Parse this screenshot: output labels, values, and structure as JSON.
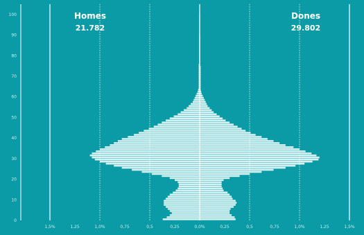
{
  "chart_data": {
    "type": "bar",
    "orientation": "horizontal-population-pyramid",
    "colors": {
      "background": "#0a9ba6",
      "bars": "#d6f2f2",
      "grid": "#ffffff"
    },
    "grid": true,
    "series": [
      {
        "name": "Homes",
        "total": "21.782",
        "side": "left"
      },
      {
        "name": "Dones",
        "total": "29.802",
        "side": "right"
      }
    ],
    "xlim": [
      -1.5,
      1.5
    ],
    "ylim": [
      0,
      105
    ],
    "x_tick_values": [
      -1.5,
      -1.25,
      -1.0,
      -0.75,
      -0.5,
      -0.25,
      0,
      0.25,
      0.5,
      0.75,
      1.0,
      1.25,
      1.5
    ],
    "x_tick_labels": [
      "1,5%",
      "1,25",
      "1,0%",
      "0,75",
      "0,5",
      "0,25",
      "0,0%",
      "0,25",
      "0,5",
      "0,75",
      "1,0%",
      "1,25",
      "1,5%"
    ],
    "y_tick_values": [
      0,
      10,
      20,
      30,
      40,
      50,
      60,
      70,
      80,
      90,
      100
    ],
    "y_tick_labels": [
      "0",
      "10",
      "20",
      "30",
      "40",
      "50",
      "60",
      "70",
      "80",
      "90",
      "100"
    ],
    "ages": [
      0,
      1,
      2,
      3,
      4,
      5,
      6,
      7,
      8,
      9,
      10,
      11,
      12,
      13,
      14,
      15,
      16,
      17,
      18,
      19,
      20,
      21,
      22,
      23,
      24,
      25,
      26,
      27,
      28,
      29,
      30,
      31,
      32,
      33,
      34,
      35,
      36,
      37,
      38,
      39,
      40,
      41,
      42,
      43,
      44,
      45,
      46,
      47,
      48,
      49,
      50,
      51,
      52,
      53,
      54,
      55,
      56,
      57,
      58,
      59,
      60,
      61,
      62,
      63,
      64,
      65,
      66,
      67,
      68,
      69,
      70,
      71,
      72,
      73,
      74,
      75,
      76,
      77,
      78,
      79,
      80,
      81,
      82,
      83,
      84,
      85,
      86,
      87,
      88,
      89,
      90,
      91,
      92,
      93,
      94,
      95,
      96,
      97,
      98,
      99,
      100
    ],
    "men": [
      0.37,
      0.33,
      0.3,
      0.28,
      0.3,
      0.32,
      0.34,
      0.36,
      0.36,
      0.36,
      0.34,
      0.32,
      0.3,
      0.27,
      0.24,
      0.22,
      0.21,
      0.21,
      0.22,
      0.25,
      0.3,
      0.38,
      0.48,
      0.58,
      0.68,
      0.78,
      0.86,
      0.94,
      1.0,
      1.05,
      1.08,
      1.1,
      1.08,
      1.04,
      1.0,
      0.95,
      0.9,
      0.86,
      0.82,
      0.78,
      0.72,
      0.66,
      0.61,
      0.56,
      0.51,
      0.46,
      0.42,
      0.38,
      0.34,
      0.3,
      0.26,
      0.22,
      0.19,
      0.16,
      0.13,
      0.11,
      0.09,
      0.07,
      0.06,
      0.05,
      0.04,
      0.03,
      0.02,
      0.015,
      0.01,
      0.01,
      0.01,
      0.01,
      0.01,
      0.01,
      0.01,
      0.01,
      0.01,
      0.01,
      0.01,
      0.01,
      0.005,
      0.005,
      0.005,
      0.005,
      0.005,
      0.005,
      0.005,
      0.005,
      0.005,
      0.005,
      0.005,
      0.005,
      0.005,
      0.005,
      0.005,
      0.003,
      0.003,
      0.003,
      0.003,
      0.003,
      0.003,
      0.003,
      0.003,
      0.003,
      0.003
    ],
    "women": [
      0.36,
      0.35,
      0.32,
      0.3,
      0.3,
      0.31,
      0.34,
      0.36,
      0.37,
      0.36,
      0.33,
      0.32,
      0.3,
      0.28,
      0.24,
      0.23,
      0.22,
      0.22,
      0.22,
      0.24,
      0.3,
      0.4,
      0.5,
      0.62,
      0.74,
      0.86,
      0.96,
      1.05,
      1.13,
      1.19,
      1.2,
      1.17,
      1.12,
      1.06,
      1.0,
      0.94,
      0.86,
      0.8,
      0.74,
      0.68,
      0.62,
      0.56,
      0.51,
      0.46,
      0.42,
      0.38,
      0.34,
      0.3,
      0.26,
      0.23,
      0.2,
      0.17,
      0.14,
      0.12,
      0.1,
      0.08,
      0.07,
      0.06,
      0.05,
      0.04,
      0.03,
      0.02,
      0.015,
      0.01,
      0.01,
      0.01,
      0.01,
      0.01,
      0.01,
      0.01,
      0.01,
      0.01,
      0.01,
      0.01,
      0.01,
      0.005,
      0.005,
      0.005,
      0.005,
      0.005,
      0.005,
      0.005,
      0.005,
      0.005,
      0.005,
      0.005,
      0.005,
      0.005,
      0.005,
      0.005,
      0.003,
      0.003,
      0.003,
      0.003,
      0.003,
      0.003,
      0.003,
      0.003,
      0.003,
      0.003,
      0.003
    ]
  }
}
